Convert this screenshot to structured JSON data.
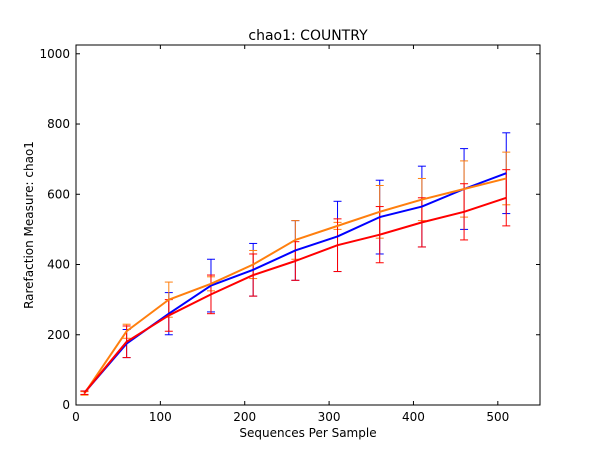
{
  "chart_data": {
    "type": "line",
    "title": "chao1: COUNTRY",
    "xlabel": "Sequences Per Sample",
    "ylabel": "Rarefaction Measure: chao1",
    "xlim": [
      0,
      550
    ],
    "ylim": [
      0,
      1025
    ],
    "x_ticks": [
      0,
      100,
      200,
      300,
      400,
      500
    ],
    "y_ticks": [
      0,
      200,
      400,
      600,
      800,
      1000
    ],
    "grid": false,
    "legend": "none",
    "x": [
      10,
      60,
      110,
      160,
      210,
      260,
      310,
      360,
      410,
      460,
      510
    ],
    "series": [
      {
        "color": "#0000ff",
        "values": [
          35,
          175,
          260,
          340,
          385,
          440,
          480,
          535,
          565,
          615,
          660
        ],
        "error": [
          5,
          40,
          60,
          75,
          75,
          85,
          100,
          105,
          115,
          115,
          115
        ]
      },
      {
        "color": "#ff7f0e",
        "values": [
          33,
          210,
          300,
          345,
          400,
          470,
          510,
          550,
          585,
          615,
          645
        ],
        "error": [
          5,
          20,
          50,
          20,
          40,
          55,
          10,
          75,
          60,
          80,
          75
        ]
      },
      {
        "color": "#ff0000",
        "values": [
          35,
          180,
          255,
          315,
          370,
          410,
          455,
          485,
          520,
          550,
          590
        ],
        "error": [
          5,
          45,
          45,
          55,
          60,
          55,
          75,
          80,
          70,
          80,
          80
        ]
      }
    ]
  }
}
